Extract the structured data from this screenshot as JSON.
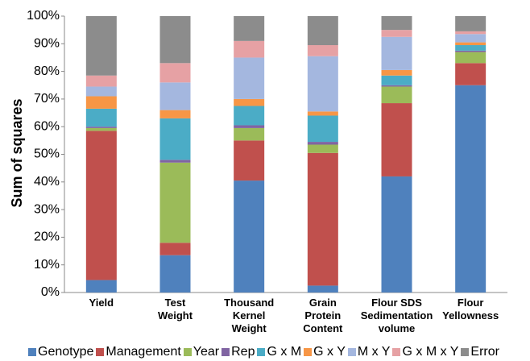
{
  "chart_data": {
    "type": "stacked_bar",
    "y_label": "Sum of squares",
    "categories": [
      "Yield",
      "Test\nWeight",
      "Thousand\nKernel\nWeight",
      "Grain\nProtein\nContent",
      "Flour SDS\nSedimentation\nvolume",
      "Flour\nYellowness"
    ],
    "series": [
      {
        "name": "Genotype",
        "color": "#4f81bd",
        "values": [
          4.5,
          13.5,
          40.5,
          2.5,
          42,
          75
        ]
      },
      {
        "name": "Management",
        "color": "#c0504d",
        "values": [
          54,
          4.5,
          14.5,
          48,
          26.5,
          8
        ]
      },
      {
        "name": "Year",
        "color": "#9bbb59",
        "values": [
          1,
          29,
          4.5,
          3,
          6,
          4
        ]
      },
      {
        "name": "Rep",
        "color": "#8064a2",
        "values": [
          0.5,
          1,
          1,
          1,
          0.5,
          0.5
        ]
      },
      {
        "name": "G x M",
        "color": "#4bacc6",
        "values": [
          6.5,
          15,
          7,
          9.5,
          3.5,
          2
        ]
      },
      {
        "name": "G x Y",
        "color": "#f79646",
        "values": [
          4.5,
          3,
          2.5,
          1.5,
          2,
          1
        ]
      },
      {
        "name": "M x Y",
        "color": "#a4b7df",
        "values": [
          3.5,
          10,
          15,
          20,
          12,
          3
        ]
      },
      {
        "name": "G x M x Y",
        "color": "#e6a1a4",
        "values": [
          4,
          7,
          6,
          4,
          2.5,
          1
        ]
      },
      {
        "name": "Error",
        "color": "#8c8c8c",
        "values": [
          21.5,
          17,
          9,
          10.5,
          5,
          5.5
        ]
      }
    ],
    "ylim": [
      0,
      100
    ],
    "yticks": [
      {
        "value": 0,
        "label": "0%"
      },
      {
        "value": 10,
        "label": "10%"
      },
      {
        "value": 20,
        "label": "20%"
      },
      {
        "value": 30,
        "label": "30%"
      },
      {
        "value": 40,
        "label": "40%"
      },
      {
        "value": 50,
        "label": "50%"
      },
      {
        "value": 60,
        "label": "60%"
      },
      {
        "value": 70,
        "label": "70%"
      },
      {
        "value": 80,
        "label": "80%"
      },
      {
        "value": 90,
        "label": "90%"
      },
      {
        "value": 100,
        "label": "100%"
      }
    ]
  }
}
